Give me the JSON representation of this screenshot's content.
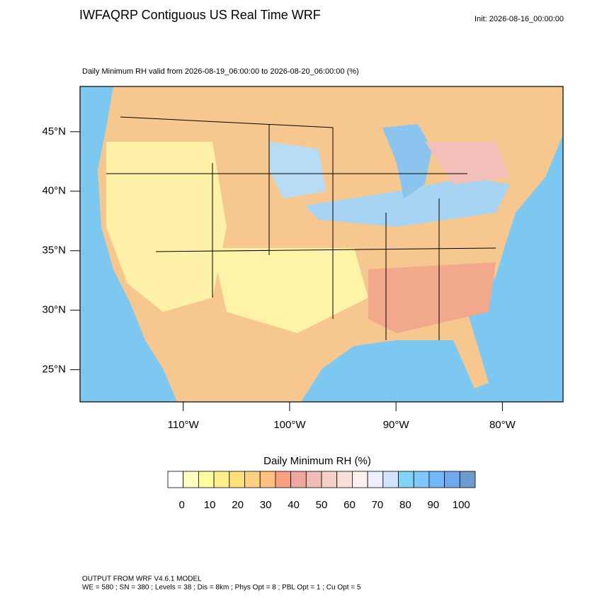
{
  "header": {
    "title": "IWFAQRP Contiguous US Real Time WRF",
    "init": "Init: 2026-08-16_00:00:00"
  },
  "map": {
    "subtitle": "Daily Minimum RH valid from 2026-08-19_06:00:00 to 2026-08-20_06:00:00   (%)",
    "lonlim": [
      -119.7,
      -74.3
    ],
    "latlim": [
      22.3,
      48.8
    ],
    "lat_ticks": [
      {
        "value": 25,
        "label": "25°N"
      },
      {
        "value": 30,
        "label": "30°N"
      },
      {
        "value": 35,
        "label": "35°N"
      },
      {
        "value": 40,
        "label": "40°N"
      },
      {
        "value": 45,
        "label": "45°N"
      }
    ],
    "lon_ticks": [
      {
        "value": -110,
        "label": "110°W"
      },
      {
        "value": -100,
        "label": "100°W"
      },
      {
        "value": -90,
        "label": "90°W"
      },
      {
        "value": -80,
        "label": "80°W"
      }
    ]
  },
  "colorbar": {
    "title": "Daily Minimum RH  (%)",
    "clim": [
      -5,
      105
    ],
    "ticks": [
      0,
      10,
      20,
      30,
      40,
      50,
      60,
      70,
      80,
      90,
      100
    ],
    "colors": [
      "#ffffff",
      "#ffffbf",
      "#ffff9f",
      "#fff08c",
      "#ffe07a",
      "#ffd080",
      "#ffc080",
      "#f8a080",
      "#eea8a0",
      "#f0bcb4",
      "#f5d0c8",
      "#f8e0d8",
      "#fff0f0",
      "#eeeeff",
      "#d0e4ff",
      "#80d4f8",
      "#80c8fa",
      "#70b8f8",
      "#70a8f0",
      "#6c9ccc"
    ]
  },
  "footer": {
    "line1": "OUTPUT FROM WRF V4.6.1 MODEL",
    "line2": "WE = 580 ; SN = 380 ; Levels = 38 ; Dis = 8km ; Phys Opt = 8 ; PBL Opt = 1 ; Cu Opt = 5"
  }
}
